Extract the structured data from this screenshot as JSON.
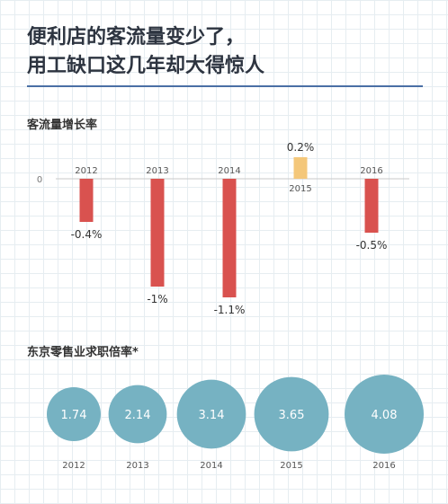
{
  "title_lines": [
    "便利店的客流量变少了，",
    "用工缺口这几年却大得惊人"
  ],
  "colors": {
    "accent_rule": "#4a6fa5",
    "negative_bar": "#d9524f",
    "positive_bar": "#f4c77a",
    "bubble": "#76b2c2",
    "grid": "#e6edf1"
  },
  "chart_data": [
    {
      "type": "bar",
      "title": "客流量增长率",
      "categories": [
        "2012",
        "2013",
        "2014",
        "2015",
        "2016"
      ],
      "values": [
        -0.4,
        -1,
        -1.1,
        0.2,
        -0.5
      ],
      "value_labels": [
        "-0.4%",
        "-1%",
        "-1.1%",
        "0.2%",
        "-0.5%"
      ],
      "zero_label": "0",
      "ylim": [
        -1.1,
        0.2
      ],
      "grid": false
    },
    {
      "type": "scatter",
      "title": "东京零售业求职倍率*",
      "categories": [
        "2012",
        "2013",
        "2014",
        "2015",
        "2016"
      ],
      "values": [
        1.74,
        2.14,
        3.14,
        3.65,
        4.08
      ],
      "value_labels": [
        "1.74",
        "2.14",
        "3.14",
        "3.65",
        "4.08"
      ]
    }
  ]
}
